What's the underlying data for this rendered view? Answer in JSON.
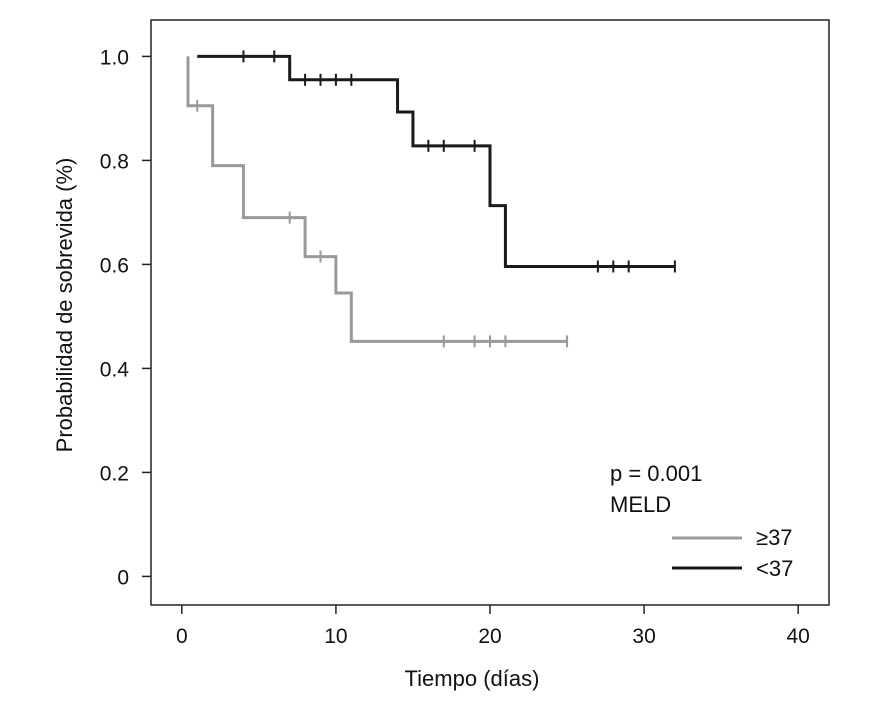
{
  "chart_data": {
    "type": "line",
    "step": true,
    "xlabel": "Tiempo (días)",
    "ylabel": "Probabilidad de sobrevida (%)",
    "xlim": [
      -2,
      42
    ],
    "ylim": [
      -0.055,
      1.07
    ],
    "xticks": [
      0,
      10,
      20,
      30,
      40
    ],
    "yticks": [
      0,
      0.2,
      0.4,
      0.6,
      0.8,
      1.0
    ],
    "xtick_labels": [
      "0",
      "10",
      "20",
      "30",
      "40"
    ],
    "ytick_labels": [
      "0",
      "0.2",
      "0.4",
      "0.6",
      "0.8",
      "1.0"
    ],
    "grid": false,
    "legend_position": "bottom-right",
    "annotation": {
      "pvalue": "p = 0.001",
      "legend_title": "MELD"
    },
    "series": [
      {
        "name": "≥37",
        "color": "#999999",
        "steps": [
          [
            0.4,
            1.0
          ],
          [
            0.4,
            0.905
          ],
          [
            2,
            0.79
          ],
          [
            4,
            0.69
          ],
          [
            8,
            0.615
          ],
          [
            10,
            0.545
          ],
          [
            11,
            0.452
          ],
          [
            25,
            0.452
          ]
        ],
        "censored": [
          [
            1,
            0.905
          ],
          [
            7,
            0.69
          ],
          [
            9,
            0.615
          ],
          [
            17,
            0.452
          ],
          [
            19,
            0.452
          ],
          [
            20,
            0.452
          ],
          [
            21,
            0.452
          ],
          [
            25,
            0.452
          ]
        ]
      },
      {
        "name": "<37",
        "color": "#1a1a1a",
        "steps": [
          [
            1,
            1.0
          ],
          [
            7,
            0.955
          ],
          [
            14,
            0.893
          ],
          [
            15,
            0.828
          ],
          [
            20,
            0.713
          ],
          [
            21,
            0.596
          ],
          [
            32,
            0.596
          ]
        ],
        "censored": [
          [
            4,
            1.0
          ],
          [
            6,
            1.0
          ],
          [
            8,
            0.955
          ],
          [
            9,
            0.955
          ],
          [
            10,
            0.955
          ],
          [
            11,
            0.955
          ],
          [
            16,
            0.828
          ],
          [
            17,
            0.828
          ],
          [
            19,
            0.828
          ],
          [
            27,
            0.596
          ],
          [
            28,
            0.596
          ],
          [
            29,
            0.596
          ],
          [
            32,
            0.596
          ]
        ]
      }
    ]
  }
}
